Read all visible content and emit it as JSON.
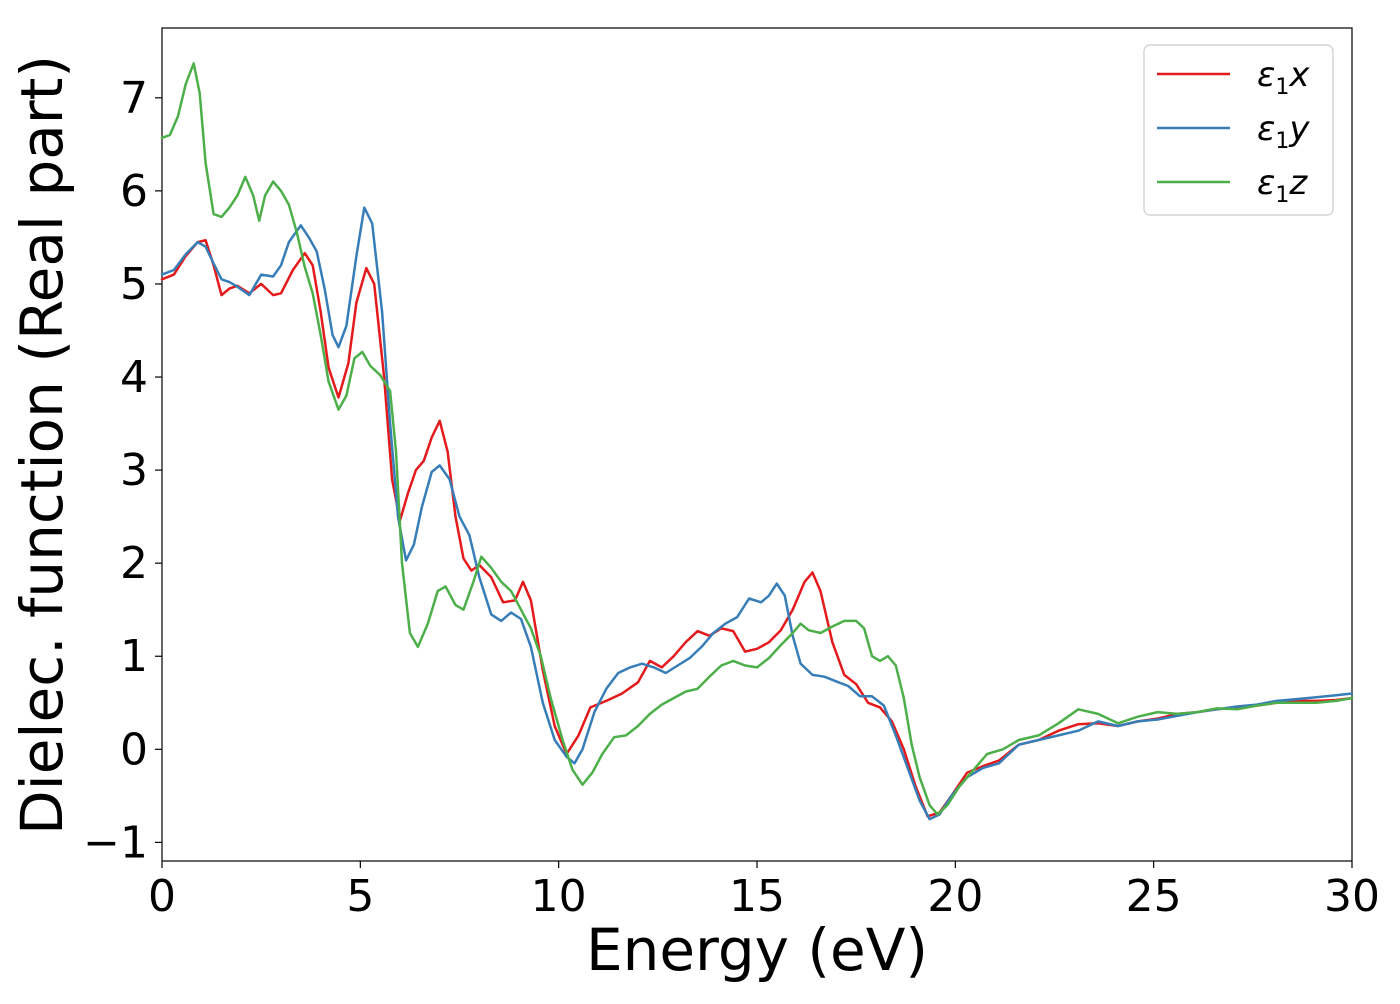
{
  "chart_data": {
    "type": "line",
    "xlabel": "Energy (eV)",
    "ylabel": "Dielec. function (Real part)",
    "xlim": [
      0,
      30
    ],
    "ylim": [
      -1.2,
      7.75
    ],
    "xticks": [
      0,
      5,
      10,
      15,
      20,
      25,
      30
    ],
    "yticks": [
      -1,
      0,
      1,
      2,
      3,
      4,
      5,
      6,
      7
    ],
    "grid": false,
    "legend_position": "top-right",
    "series": [
      {
        "name": "ε1x",
        "legend_symbol": "ε",
        "legend_sub": "1",
        "legend_var": "x",
        "color": "#e41a1c",
        "points": [
          [
            0,
            5.05
          ],
          [
            0.3,
            5.1
          ],
          [
            0.6,
            5.3
          ],
          [
            0.9,
            5.45
          ],
          [
            1.1,
            5.47
          ],
          [
            1.3,
            5.2
          ],
          [
            1.5,
            4.88
          ],
          [
            1.7,
            4.95
          ],
          [
            1.9,
            4.98
          ],
          [
            2.2,
            4.9
          ],
          [
            2.5,
            5.0
          ],
          [
            2.8,
            4.88
          ],
          [
            3.0,
            4.9
          ],
          [
            3.3,
            5.15
          ],
          [
            3.6,
            5.33
          ],
          [
            3.8,
            5.2
          ],
          [
            4.0,
            4.7
          ],
          [
            4.2,
            4.1
          ],
          [
            4.45,
            3.78
          ],
          [
            4.7,
            4.15
          ],
          [
            4.9,
            4.8
          ],
          [
            5.15,
            5.17
          ],
          [
            5.35,
            5.0
          ],
          [
            5.6,
            4.0
          ],
          [
            5.8,
            2.9
          ],
          [
            6.0,
            2.46
          ],
          [
            6.2,
            2.75
          ],
          [
            6.4,
            3.0
          ],
          [
            6.6,
            3.1
          ],
          [
            6.8,
            3.35
          ],
          [
            7.0,
            3.53
          ],
          [
            7.2,
            3.2
          ],
          [
            7.4,
            2.5
          ],
          [
            7.6,
            2.05
          ],
          [
            7.8,
            1.92
          ],
          [
            8.0,
            1.98
          ],
          [
            8.3,
            1.85
          ],
          [
            8.6,
            1.58
          ],
          [
            8.9,
            1.6
          ],
          [
            9.1,
            1.8
          ],
          [
            9.3,
            1.6
          ],
          [
            9.6,
            0.85
          ],
          [
            9.9,
            0.25
          ],
          [
            10.2,
            -0.05
          ],
          [
            10.5,
            0.15
          ],
          [
            10.8,
            0.45
          ],
          [
            11.2,
            0.52
          ],
          [
            11.6,
            0.6
          ],
          [
            12.0,
            0.72
          ],
          [
            12.3,
            0.95
          ],
          [
            12.6,
            0.88
          ],
          [
            12.9,
            1.0
          ],
          [
            13.2,
            1.15
          ],
          [
            13.5,
            1.27
          ],
          [
            13.8,
            1.22
          ],
          [
            14.1,
            1.3
          ],
          [
            14.4,
            1.27
          ],
          [
            14.7,
            1.05
          ],
          [
            15.0,
            1.08
          ],
          [
            15.3,
            1.15
          ],
          [
            15.6,
            1.28
          ],
          [
            15.9,
            1.5
          ],
          [
            16.2,
            1.8
          ],
          [
            16.4,
            1.9
          ],
          [
            16.6,
            1.7
          ],
          [
            16.9,
            1.15
          ],
          [
            17.2,
            0.8
          ],
          [
            17.5,
            0.7
          ],
          [
            17.8,
            0.5
          ],
          [
            18.1,
            0.45
          ],
          [
            18.4,
            0.3
          ],
          [
            18.7,
            0.0
          ],
          [
            19.0,
            -0.4
          ],
          [
            19.3,
            -0.72
          ],
          [
            19.6,
            -0.68
          ],
          [
            19.9,
            -0.5
          ],
          [
            20.3,
            -0.25
          ],
          [
            20.7,
            -0.18
          ],
          [
            21.1,
            -0.12
          ],
          [
            21.6,
            0.05
          ],
          [
            22.1,
            0.1
          ],
          [
            22.6,
            0.2
          ],
          [
            23.1,
            0.27
          ],
          [
            23.6,
            0.28
          ],
          [
            24.1,
            0.25
          ],
          [
            24.6,
            0.3
          ],
          [
            25.1,
            0.33
          ],
          [
            25.6,
            0.38
          ],
          [
            26.1,
            0.4
          ],
          [
            26.6,
            0.43
          ],
          [
            27.1,
            0.45
          ],
          [
            27.6,
            0.47
          ],
          [
            28.1,
            0.5
          ],
          [
            28.6,
            0.52
          ],
          [
            29.1,
            0.52
          ],
          [
            29.6,
            0.53
          ],
          [
            30.0,
            0.55
          ]
        ]
      },
      {
        "name": "ε1y",
        "legend_symbol": "ε",
        "legend_sub": "1",
        "legend_var": "y",
        "color": "#377eb8",
        "points": [
          [
            0,
            5.1
          ],
          [
            0.3,
            5.15
          ],
          [
            0.6,
            5.32
          ],
          [
            0.9,
            5.45
          ],
          [
            1.1,
            5.4
          ],
          [
            1.3,
            5.22
          ],
          [
            1.5,
            5.05
          ],
          [
            1.7,
            5.02
          ],
          [
            1.9,
            4.97
          ],
          [
            2.2,
            4.88
          ],
          [
            2.5,
            5.1
          ],
          [
            2.8,
            5.08
          ],
          [
            3.0,
            5.2
          ],
          [
            3.2,
            5.45
          ],
          [
            3.5,
            5.63
          ],
          [
            3.7,
            5.5
          ],
          [
            3.9,
            5.35
          ],
          [
            4.1,
            4.95
          ],
          [
            4.3,
            4.45
          ],
          [
            4.45,
            4.32
          ],
          [
            4.65,
            4.55
          ],
          [
            4.9,
            5.3
          ],
          [
            5.1,
            5.82
          ],
          [
            5.3,
            5.65
          ],
          [
            5.55,
            4.7
          ],
          [
            5.75,
            3.5
          ],
          [
            5.95,
            2.5
          ],
          [
            6.15,
            2.03
          ],
          [
            6.35,
            2.2
          ],
          [
            6.55,
            2.6
          ],
          [
            6.8,
            2.98
          ],
          [
            7.0,
            3.05
          ],
          [
            7.25,
            2.9
          ],
          [
            7.5,
            2.5
          ],
          [
            7.75,
            2.3
          ],
          [
            8.0,
            1.85
          ],
          [
            8.3,
            1.45
          ],
          [
            8.55,
            1.38
          ],
          [
            8.8,
            1.47
          ],
          [
            9.05,
            1.4
          ],
          [
            9.3,
            1.1
          ],
          [
            9.6,
            0.5
          ],
          [
            9.9,
            0.1
          ],
          [
            10.2,
            -0.08
          ],
          [
            10.4,
            -0.15
          ],
          [
            10.6,
            0.0
          ],
          [
            10.9,
            0.4
          ],
          [
            11.2,
            0.65
          ],
          [
            11.5,
            0.82
          ],
          [
            11.8,
            0.88
          ],
          [
            12.1,
            0.92
          ],
          [
            12.4,
            0.88
          ],
          [
            12.7,
            0.82
          ],
          [
            13.0,
            0.9
          ],
          [
            13.3,
            0.98
          ],
          [
            13.6,
            1.1
          ],
          [
            13.9,
            1.25
          ],
          [
            14.2,
            1.35
          ],
          [
            14.5,
            1.42
          ],
          [
            14.8,
            1.62
          ],
          [
            15.1,
            1.58
          ],
          [
            15.3,
            1.65
          ],
          [
            15.5,
            1.78
          ],
          [
            15.7,
            1.65
          ],
          [
            15.9,
            1.22
          ],
          [
            16.1,
            0.92
          ],
          [
            16.4,
            0.8
          ],
          [
            16.7,
            0.78
          ],
          [
            17.0,
            0.73
          ],
          [
            17.3,
            0.68
          ],
          [
            17.6,
            0.57
          ],
          [
            17.9,
            0.57
          ],
          [
            18.2,
            0.47
          ],
          [
            18.5,
            0.15
          ],
          [
            18.8,
            -0.2
          ],
          [
            19.1,
            -0.55
          ],
          [
            19.35,
            -0.75
          ],
          [
            19.6,
            -0.7
          ],
          [
            19.9,
            -0.5
          ],
          [
            20.3,
            -0.3
          ],
          [
            20.7,
            -0.2
          ],
          [
            21.1,
            -0.15
          ],
          [
            21.6,
            0.05
          ],
          [
            22.1,
            0.1
          ],
          [
            22.6,
            0.15
          ],
          [
            23.1,
            0.2
          ],
          [
            23.6,
            0.3
          ],
          [
            24.1,
            0.25
          ],
          [
            24.6,
            0.3
          ],
          [
            25.1,
            0.32
          ],
          [
            25.6,
            0.36
          ],
          [
            26.1,
            0.4
          ],
          [
            26.6,
            0.43
          ],
          [
            27.1,
            0.46
          ],
          [
            27.6,
            0.48
          ],
          [
            28.1,
            0.52
          ],
          [
            28.6,
            0.54
          ],
          [
            29.1,
            0.56
          ],
          [
            29.6,
            0.58
          ],
          [
            30.0,
            0.6
          ]
        ]
      },
      {
        "name": "ε1z",
        "legend_symbol": "ε",
        "legend_sub": "1",
        "legend_var": "z",
        "color": "#4daf4a",
        "points": [
          [
            0,
            6.57
          ],
          [
            0.2,
            6.6
          ],
          [
            0.4,
            6.8
          ],
          [
            0.6,
            7.15
          ],
          [
            0.8,
            7.37
          ],
          [
            0.95,
            7.05
          ],
          [
            1.1,
            6.3
          ],
          [
            1.3,
            5.75
          ],
          [
            1.5,
            5.72
          ],
          [
            1.7,
            5.82
          ],
          [
            1.9,
            5.95
          ],
          [
            2.1,
            6.15
          ],
          [
            2.3,
            5.95
          ],
          [
            2.45,
            5.68
          ],
          [
            2.6,
            5.95
          ],
          [
            2.8,
            6.1
          ],
          [
            3.0,
            6.0
          ],
          [
            3.2,
            5.85
          ],
          [
            3.4,
            5.55
          ],
          [
            3.6,
            5.18
          ],
          [
            3.8,
            4.9
          ],
          [
            4.0,
            4.45
          ],
          [
            4.2,
            3.95
          ],
          [
            4.45,
            3.65
          ],
          [
            4.65,
            3.8
          ],
          [
            4.85,
            4.2
          ],
          [
            5.05,
            4.27
          ],
          [
            5.25,
            4.12
          ],
          [
            5.5,
            4.02
          ],
          [
            5.75,
            3.85
          ],
          [
            5.9,
            3.2
          ],
          [
            6.05,
            2.0
          ],
          [
            6.25,
            1.25
          ],
          [
            6.45,
            1.1
          ],
          [
            6.7,
            1.35
          ],
          [
            6.95,
            1.7
          ],
          [
            7.15,
            1.75
          ],
          [
            7.4,
            1.55
          ],
          [
            7.6,
            1.5
          ],
          [
            7.85,
            1.8
          ],
          [
            8.05,
            2.07
          ],
          [
            8.3,
            1.95
          ],
          [
            8.55,
            1.8
          ],
          [
            8.8,
            1.7
          ],
          [
            9.05,
            1.5
          ],
          [
            9.3,
            1.3
          ],
          [
            9.55,
            1.0
          ],
          [
            9.8,
            0.55
          ],
          [
            10.1,
            0.1
          ],
          [
            10.35,
            -0.22
          ],
          [
            10.6,
            -0.38
          ],
          [
            10.85,
            -0.25
          ],
          [
            11.1,
            -0.05
          ],
          [
            11.4,
            0.13
          ],
          [
            11.7,
            0.15
          ],
          [
            12.0,
            0.25
          ],
          [
            12.3,
            0.38
          ],
          [
            12.6,
            0.48
          ],
          [
            12.9,
            0.55
          ],
          [
            13.2,
            0.62
          ],
          [
            13.5,
            0.65
          ],
          [
            13.8,
            0.78
          ],
          [
            14.1,
            0.9
          ],
          [
            14.4,
            0.95
          ],
          [
            14.7,
            0.9
          ],
          [
            15.0,
            0.88
          ],
          [
            15.3,
            0.98
          ],
          [
            15.6,
            1.12
          ],
          [
            15.9,
            1.25
          ],
          [
            16.1,
            1.35
          ],
          [
            16.3,
            1.28
          ],
          [
            16.6,
            1.25
          ],
          [
            16.9,
            1.32
          ],
          [
            17.2,
            1.38
          ],
          [
            17.5,
            1.38
          ],
          [
            17.7,
            1.3
          ],
          [
            17.9,
            1.0
          ],
          [
            18.1,
            0.95
          ],
          [
            18.3,
            1.0
          ],
          [
            18.5,
            0.9
          ],
          [
            18.7,
            0.55
          ],
          [
            18.9,
            0.05
          ],
          [
            19.1,
            -0.3
          ],
          [
            19.35,
            -0.6
          ],
          [
            19.55,
            -0.7
          ],
          [
            19.8,
            -0.6
          ],
          [
            20.1,
            -0.4
          ],
          [
            20.4,
            -0.25
          ],
          [
            20.8,
            -0.05
          ],
          [
            21.2,
            0.0
          ],
          [
            21.6,
            0.1
          ],
          [
            22.1,
            0.15
          ],
          [
            22.6,
            0.28
          ],
          [
            23.1,
            0.43
          ],
          [
            23.6,
            0.38
          ],
          [
            24.1,
            0.28
          ],
          [
            24.6,
            0.35
          ],
          [
            25.1,
            0.4
          ],
          [
            25.6,
            0.38
          ],
          [
            26.1,
            0.4
          ],
          [
            26.6,
            0.44
          ],
          [
            27.1,
            0.43
          ],
          [
            27.6,
            0.47
          ],
          [
            28.1,
            0.5
          ],
          [
            28.6,
            0.5
          ],
          [
            29.1,
            0.5
          ],
          [
            29.6,
            0.52
          ],
          [
            30.0,
            0.55
          ]
        ]
      }
    ]
  }
}
